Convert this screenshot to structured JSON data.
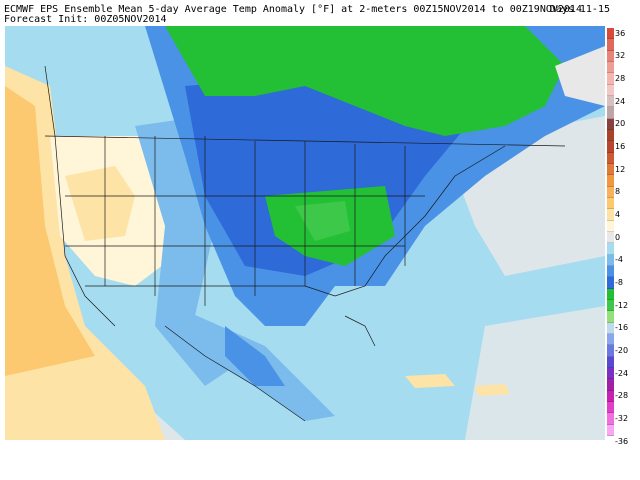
{
  "header": {
    "title": "ECMWF EPS Ensemble Mean 5-day Average Temp Anomaly [°F] at 2-meters 00Z15NOV2014 to 00Z19NOV2014",
    "init": "Forecast Init: 00Z05NOV2014",
    "days": "Days 11-15"
  },
  "legend": {
    "ticks": [
      "36",
      "32",
      "28",
      "24",
      "20",
      "16",
      "12",
      "8",
      "4",
      "0",
      "-4",
      "-8",
      "-12",
      "-16",
      "-20",
      "-24",
      "-28",
      "-32",
      "-36"
    ],
    "bins": [
      {
        "min": 34,
        "color": "#d84a3a"
      },
      {
        "min": 32,
        "color": "#e06a5a"
      },
      {
        "min": 30,
        "color": "#e8857a"
      },
      {
        "min": 28,
        "color": "#ef9e95"
      },
      {
        "min": 26,
        "color": "#f4b6ae"
      },
      {
        "min": 24,
        "color": "#f0c8c6"
      },
      {
        "min": 22,
        "color": "#d6c0c0"
      },
      {
        "min": 20,
        "color": "#bfa6a6"
      },
      {
        "min": 18,
        "color": "#8a4040"
      },
      {
        "min": 16,
        "color": "#a6442a"
      },
      {
        "min": 14,
        "color": "#b6462e"
      },
      {
        "min": 12,
        "color": "#cc5a33"
      },
      {
        "min": 10,
        "color": "#e07a3a"
      },
      {
        "min": 8,
        "color": "#f0983f"
      },
      {
        "min": 6,
        "color": "#f8b25a"
      },
      {
        "min": 4,
        "color": "#fcc870"
      },
      {
        "min": 2,
        "color": "#fde3a6"
      },
      {
        "min": 0,
        "color": "#fff5d8"
      },
      {
        "min": -2,
        "color": "#e8e8e8"
      },
      {
        "min": -4,
        "color": "#a6dcf0"
      },
      {
        "min": -6,
        "color": "#7cbcec"
      },
      {
        "min": -8,
        "color": "#4a92e6"
      },
      {
        "min": -10,
        "color": "#2e6ad8"
      },
      {
        "min": -12,
        "color": "#23c036"
      },
      {
        "min": -14,
        "color": "#3ec84a"
      },
      {
        "min": -16,
        "color": "#94e07a"
      },
      {
        "min": -18,
        "color": "#c0d8f0"
      },
      {
        "min": -20,
        "color": "#8aa6ec"
      },
      {
        "min": -22,
        "color": "#6a78e0"
      },
      {
        "min": -24,
        "color": "#5a48d0"
      },
      {
        "min": -26,
        "color": "#7a30c0"
      },
      {
        "min": -28,
        "color": "#a020a8"
      },
      {
        "min": -30,
        "color": "#c820b0"
      },
      {
        "min": -32,
        "color": "#e040c8"
      },
      {
        "min": -34,
        "color": "#f070e0"
      },
      {
        "min": -36,
        "color": "#f8a8f0"
      }
    ]
  },
  "map": {
    "ocean_color": "#a6dcf0",
    "border_color": "#1a1a1a"
  }
}
